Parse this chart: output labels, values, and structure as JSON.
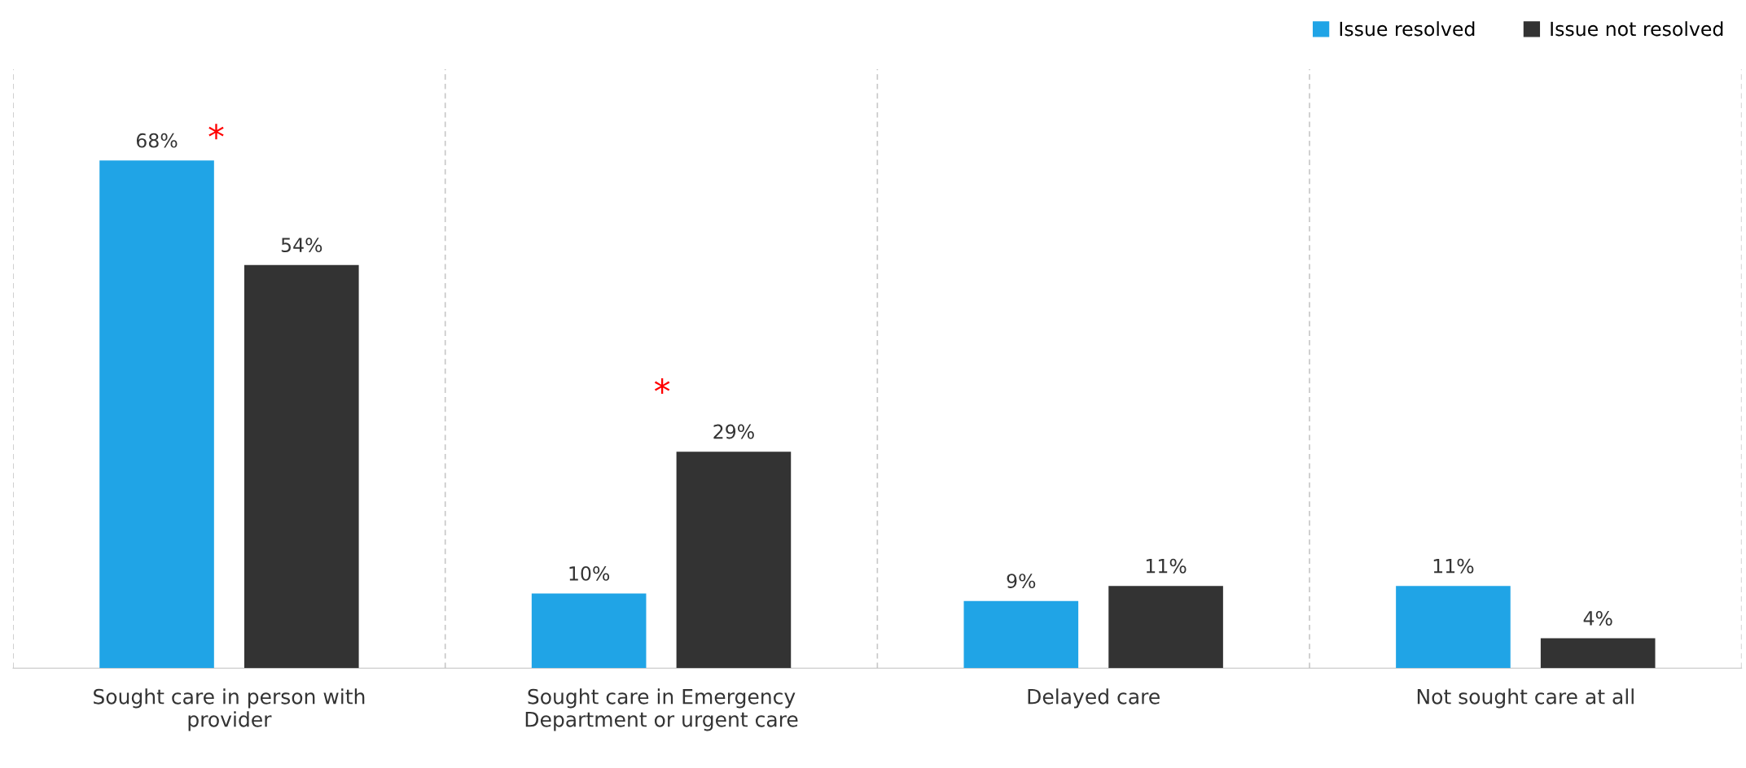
{
  "chart_data": {
    "type": "bar",
    "categories": [
      "Sought care in person with\nprovider",
      "Sought care in Emergency\nDepartment or urgent care",
      "Delayed care",
      "Not sought care at all"
    ],
    "series": [
      {
        "name": "Issue resolved",
        "color": "#20a4e6",
        "values": [
          68,
          10,
          9,
          11
        ],
        "value_labels": [
          "68%",
          "10%",
          "9%",
          "11%"
        ]
      },
      {
        "name": "Issue not resolved",
        "color": "#333333",
        "values": [
          54,
          29,
          11,
          4
        ],
        "value_labels": [
          "54%",
          "29%",
          "11%",
          "4%"
        ]
      }
    ],
    "annotations": [
      "*",
      "*"
    ],
    "grid": "x",
    "legend": "top right"
  }
}
